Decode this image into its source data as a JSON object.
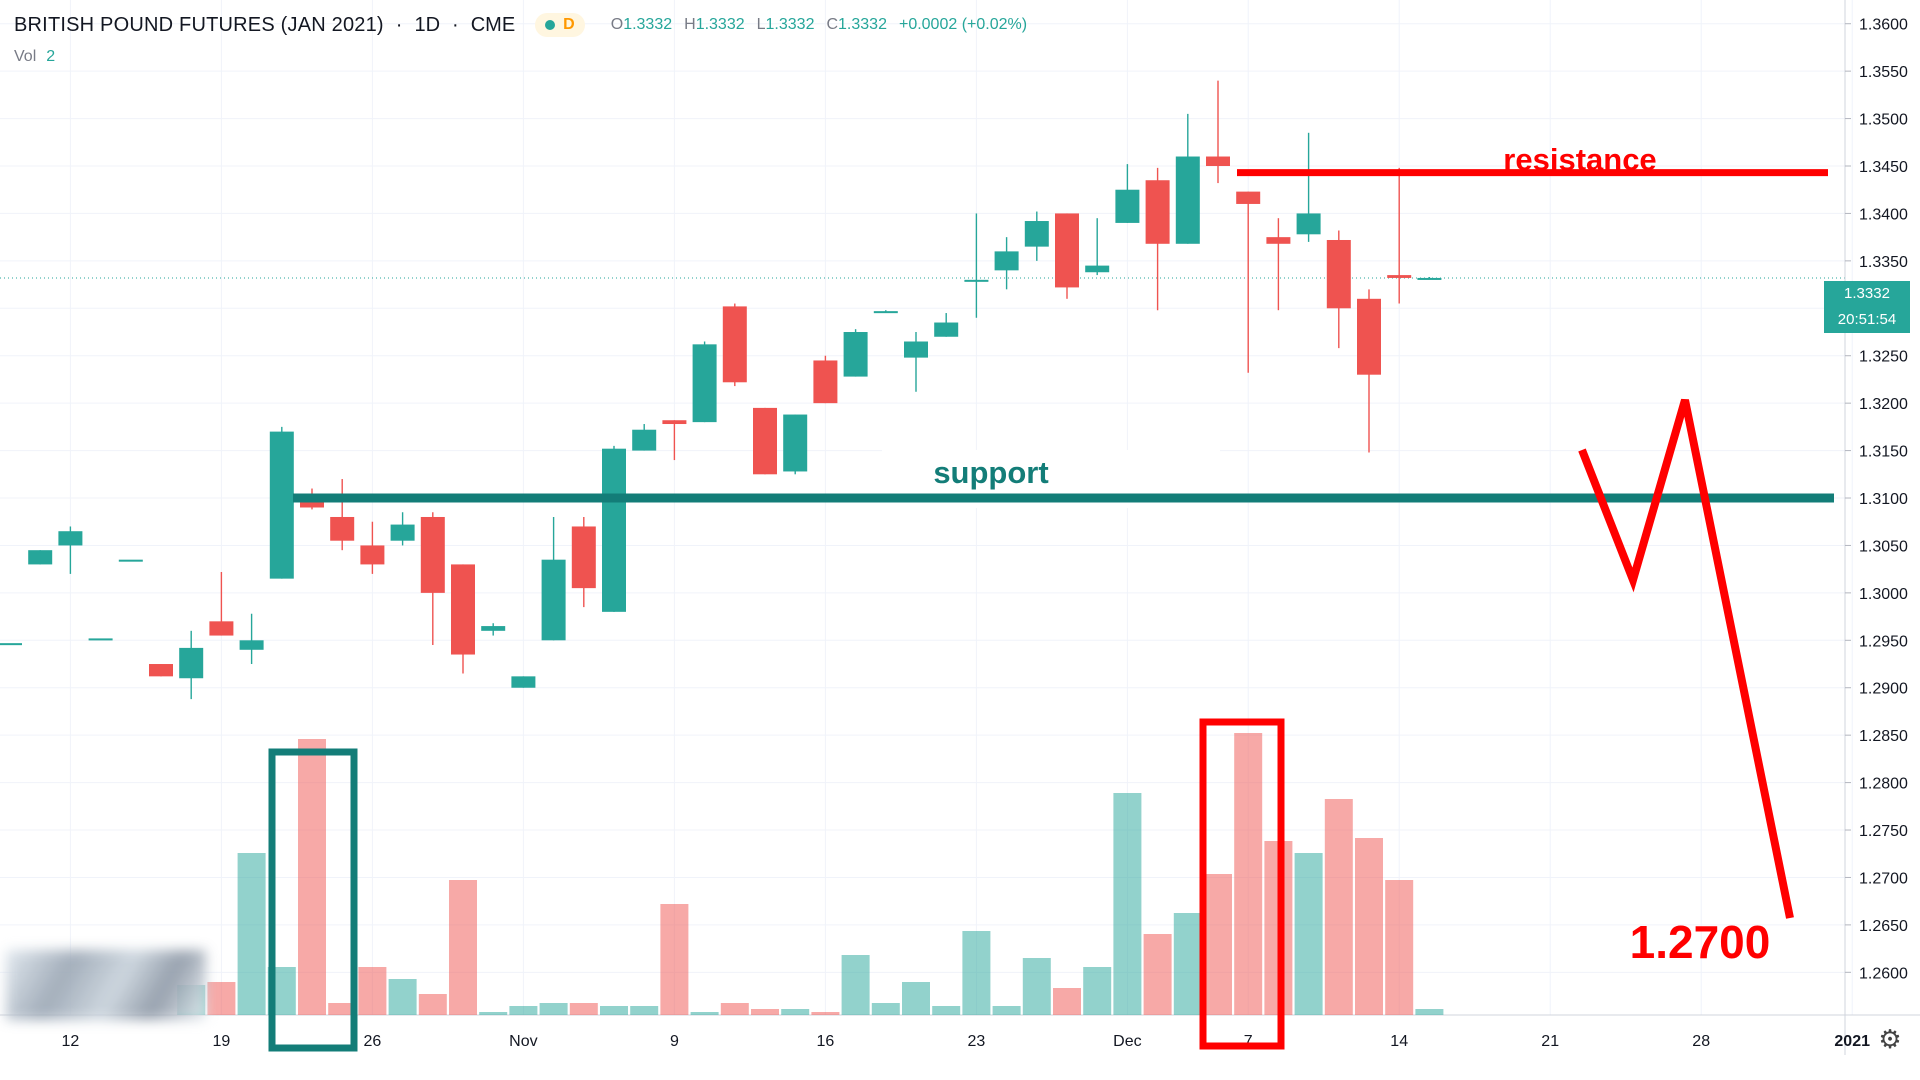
{
  "header": {
    "title": "BRITISH POUND FUTURES (JAN 2021)",
    "interval": "1D",
    "exchange": "CME",
    "status_letter": "D",
    "ohlc": {
      "o_label": "O",
      "o": "1.3332",
      "h_label": "H",
      "h": "1.3332",
      "l_label": "L",
      "l": "1.3332",
      "c_label": "C",
      "c": "1.3332",
      "change": "+0.0002 (+0.02%)"
    },
    "volume_label": "Vol",
    "volume_value": "2"
  },
  "price_tag": {
    "last_price": "1.3332",
    "countdown": "20:51:54"
  },
  "colors": {
    "up": "#26a69a",
    "down": "#ef5350",
    "annotation_red": "#ff0000",
    "annotation_teal": "#137d78"
  },
  "chart_data": {
    "type": "candlestick",
    "ylim": [
      1.2555,
      1.3625
    ],
    "y_ticks": [
      "1.3600",
      "1.3550",
      "1.3500",
      "1.3450",
      "1.3400",
      "1.3350",
      "1.3300",
      "1.3250",
      "1.3200",
      "1.3150",
      "1.3100",
      "1.3050",
      "1.3000",
      "1.2950",
      "1.2900",
      "1.2850",
      "1.2800",
      "1.2750",
      "1.2700",
      "1.2650",
      "1.2600"
    ],
    "x_ticks": [
      {
        "i": 2,
        "label": "12"
      },
      {
        "i": 7,
        "label": "19"
      },
      {
        "i": 12,
        "label": "26"
      },
      {
        "i": 17,
        "label": "Nov"
      },
      {
        "i": 22,
        "label": "9"
      },
      {
        "i": 27,
        "label": "16"
      },
      {
        "i": 32,
        "label": "23"
      },
      {
        "i": 37,
        "label": "Dec"
      },
      {
        "i": 41,
        "label": "7"
      },
      {
        "i": 46,
        "label": "14"
      },
      {
        "i": 51,
        "label": "21"
      },
      {
        "i": 56,
        "label": "28"
      },
      {
        "i": 61,
        "label": "2021"
      }
    ],
    "candles": [
      {
        "i": 0,
        "o": 1.2947,
        "h": 1.2947,
        "l": 1.2947,
        "c": 1.2947,
        "v": 0
      },
      {
        "i": 1,
        "o": 1.303,
        "h": 1.3045,
        "l": 1.303,
        "c": 1.3045,
        "v": 0
      },
      {
        "i": 2,
        "o": 1.305,
        "h": 1.307,
        "l": 1.302,
        "c": 1.3065,
        "v": 0
      },
      {
        "i": 3,
        "o": 1.2952,
        "h": 1.2952,
        "l": 1.2952,
        "c": 1.2952,
        "v": 0
      },
      {
        "i": 4,
        "o": 1.3035,
        "h": 1.3035,
        "l": 1.3035,
        "c": 1.3035,
        "v": 0
      },
      {
        "i": 5,
        "o": 1.2925,
        "h": 1.2925,
        "l": 1.2912,
        "c": 1.2912,
        "v": 0
      },
      {
        "i": 6,
        "o": 1.291,
        "h": 1.296,
        "l": 1.2888,
        "c": 1.2942,
        "v": 10
      },
      {
        "i": 7,
        "o": 1.297,
        "h": 1.3022,
        "l": 1.2955,
        "c": 1.2955,
        "v": 11
      },
      {
        "i": 8,
        "o": 1.294,
        "h": 1.2978,
        "l": 1.2925,
        "c": 1.295,
        "v": 54
      },
      {
        "i": 9,
        "o": 1.3015,
        "h": 1.3175,
        "l": 1.3015,
        "c": 1.317,
        "v": 16
      },
      {
        "i": 10,
        "o": 1.31,
        "h": 1.311,
        "l": 1.3088,
        "c": 1.309,
        "v": 92
      },
      {
        "i": 11,
        "o": 1.308,
        "h": 1.312,
        "l": 1.3045,
        "c": 1.3055,
        "v": 4
      },
      {
        "i": 12,
        "o": 1.305,
        "h": 1.3075,
        "l": 1.302,
        "c": 1.303,
        "v": 16
      },
      {
        "i": 13,
        "o": 1.3055,
        "h": 1.3085,
        "l": 1.305,
        "c": 1.3072,
        "v": 12
      },
      {
        "i": 14,
        "o": 1.308,
        "h": 1.3085,
        "l": 1.2945,
        "c": 1.3,
        "v": 7
      },
      {
        "i": 15,
        "o": 1.303,
        "h": 1.303,
        "l": 1.2915,
        "c": 1.2935,
        "v": 45
      },
      {
        "i": 16,
        "o": 1.296,
        "h": 1.2968,
        "l": 1.2955,
        "c": 1.2965,
        "v": 1
      },
      {
        "i": 17,
        "o": 1.29,
        "h": 1.2912,
        "l": 1.29,
        "c": 1.2912,
        "v": 3
      },
      {
        "i": 18,
        "o": 1.295,
        "h": 1.308,
        "l": 1.295,
        "c": 1.3035,
        "v": 4
      },
      {
        "i": 19,
        "o": 1.307,
        "h": 1.308,
        "l": 1.2985,
        "c": 1.3005,
        "v": 4
      },
      {
        "i": 20,
        "o": 1.298,
        "h": 1.3155,
        "l": 1.298,
        "c": 1.3152,
        "v": 3
      },
      {
        "i": 21,
        "o": 1.315,
        "h": 1.3178,
        "l": 1.315,
        "c": 1.3172,
        "v": 3
      },
      {
        "i": 22,
        "o": 1.3182,
        "h": 1.3182,
        "l": 1.314,
        "c": 1.3178,
        "v": 37
      },
      {
        "i": 23,
        "o": 1.318,
        "h": 1.3265,
        "l": 1.318,
        "c": 1.3262,
        "v": 1
      },
      {
        "i": 24,
        "o": 1.3302,
        "h": 1.3305,
        "l": 1.3218,
        "c": 1.3222,
        "v": 4
      },
      {
        "i": 25,
        "o": 1.3195,
        "h": 1.3195,
        "l": 1.3125,
        "c": 1.3125,
        "v": 2
      },
      {
        "i": 26,
        "o": 1.3128,
        "h": 1.3188,
        "l": 1.3125,
        "c": 1.3188,
        "v": 2
      },
      {
        "i": 27,
        "o": 1.3245,
        "h": 1.325,
        "l": 1.32,
        "c": 1.32,
        "v": 1
      },
      {
        "i": 28,
        "o": 1.3228,
        "h": 1.3278,
        "l": 1.3228,
        "c": 1.3275,
        "v": 20
      },
      {
        "i": 29,
        "o": 1.3297,
        "h": 1.3298,
        "l": 1.3296,
        "c": 1.3297,
        "v": 4
      },
      {
        "i": 30,
        "o": 1.3248,
        "h": 1.3275,
        "l": 1.3212,
        "c": 1.3265,
        "v": 11
      },
      {
        "i": 31,
        "o": 1.327,
        "h": 1.3295,
        "l": 1.327,
        "c": 1.3285,
        "v": 3
      },
      {
        "i": 32,
        "o": 1.333,
        "h": 1.34,
        "l": 1.329,
        "c": 1.333,
        "v": 28
      },
      {
        "i": 33,
        "o": 1.334,
        "h": 1.3375,
        "l": 1.332,
        "c": 1.336,
        "v": 3
      },
      {
        "i": 34,
        "o": 1.3365,
        "h": 1.3402,
        "l": 1.335,
        "c": 1.3392,
        "v": 19
      },
      {
        "i": 35,
        "o": 1.34,
        "h": 1.34,
        "l": 1.331,
        "c": 1.3322,
        "v": 9
      },
      {
        "i": 36,
        "o": 1.3338,
        "h": 1.3395,
        "l": 1.3335,
        "c": 1.3345,
        "v": 16
      },
      {
        "i": 37,
        "o": 1.339,
        "h": 1.3452,
        "l": 1.339,
        "c": 1.3425,
        "v": 74
      },
      {
        "i": 38,
        "o": 1.3435,
        "h": 1.3448,
        "l": 1.3298,
        "c": 1.3368,
        "v": 27
      },
      {
        "i": 39,
        "o": 1.3368,
        "h": 1.3505,
        "l": 1.3368,
        "c": 1.346,
        "v": 34
      },
      {
        "i": 40,
        "o": 1.346,
        "h": 1.354,
        "l": 1.3432,
        "c": 1.345,
        "v": 47
      },
      {
        "i": 41,
        "o": 1.3423,
        "h": 1.3423,
        "l": 1.3232,
        "c": 1.341,
        "v": 94
      },
      {
        "i": 42,
        "o": 1.3375,
        "h": 1.3395,
        "l": 1.3298,
        "c": 1.3368,
        "v": 58
      },
      {
        "i": 43,
        "o": 1.3378,
        "h": 1.3485,
        "l": 1.337,
        "c": 1.34,
        "v": 54
      },
      {
        "i": 44,
        "o": 1.3372,
        "h": 1.3382,
        "l": 1.3258,
        "c": 1.33,
        "v": 72
      },
      {
        "i": 45,
        "o": 1.331,
        "h": 1.332,
        "l": 1.3148,
        "c": 1.323,
        "v": 59
      },
      {
        "i": 46,
        "o": 1.3335,
        "h": 1.3448,
        "l": 1.3305,
        "c": 1.3332,
        "v": 45
      },
      {
        "i": 47,
        "o": 1.3332,
        "h": 1.3333,
        "l": 1.3331,
        "c": 1.3332,
        "v": 2
      }
    ]
  },
  "annotations": {
    "resistance_label": "resistance",
    "support_label": "support",
    "target_label": "1.2700"
  }
}
